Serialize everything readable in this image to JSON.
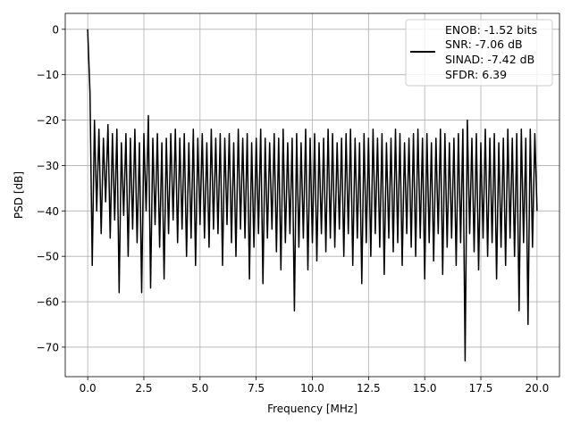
{
  "chart_data": {
    "type": "line",
    "title": "",
    "xlabel": "Frequency [MHz]",
    "ylabel": "PSD [dB]",
    "xlim": [
      -1.0,
      21.0
    ],
    "ylim": [
      -76.5,
      3.5
    ],
    "grid": true,
    "x_ticks": [
      0.0,
      2.5,
      5.0,
      7.5,
      10.0,
      12.5,
      15.0,
      17.5,
      20.0
    ],
    "x_tick_labels": [
      "0.0",
      "2.5",
      "5.0",
      "7.5",
      "10.0",
      "12.5",
      "15.0",
      "17.5",
      "20.0"
    ],
    "y_ticks": [
      0,
      -10,
      -20,
      -30,
      -40,
      -50,
      -60,
      -70
    ],
    "y_tick_labels": [
      "0",
      "−10",
      "−20",
      "−30",
      "−40",
      "−50",
      "−60",
      "−70"
    ],
    "legend_position": "top-right",
    "legend": [
      "ENOB: -1.52 bits",
      "SNR: -7.06 dB",
      "SINAD: -7.42 dB",
      "SFDR: 6.39"
    ],
    "series": [
      {
        "name": "PSD",
        "color": "#000000",
        "x_start": 0.0,
        "x_step": 0.1,
        "values": [
          0,
          -14,
          -52,
          -20,
          -40,
          -22,
          -45,
          -24,
          -38,
          -21,
          -46,
          -23,
          -42,
          -22,
          -58,
          -25,
          -41,
          -23,
          -50,
          -24,
          -44,
          -22,
          -47,
          -25,
          -58,
          -23,
          -40,
          -19,
          -57,
          -24,
          -43,
          -23,
          -48,
          -25,
          -55,
          -24,
          -45,
          -23,
          -42,
          -22,
          -47,
          -24,
          -44,
          -23,
          -50,
          -25,
          -46,
          -22,
          -52,
          -24,
          -43,
          -23,
          -46,
          -25,
          -48,
          -22,
          -44,
          -24,
          -45,
          -23,
          -52,
          -24,
          -43,
          -23,
          -47,
          -25,
          -50,
          -22,
          -44,
          -24,
          -46,
          -23,
          -55,
          -25,
          -48,
          -24,
          -45,
          -22,
          -56,
          -24,
          -46,
          -25,
          -44,
          -23,
          -49,
          -24,
          -53,
          -22,
          -47,
          -25,
          -45,
          -24,
          -62,
          -23,
          -48,
          -25,
          -46,
          -22,
          -53,
          -24,
          -47,
          -23,
          -51,
          -25,
          -45,
          -24,
          -49,
          -22,
          -46,
          -23,
          -48,
          -25,
          -44,
          -24,
          -50,
          -23,
          -45,
          -22,
          -52,
          -24,
          -46,
          -25,
          -56,
          -23,
          -47,
          -24,
          -50,
          -22,
          -45,
          -24,
          -48,
          -23,
          -54,
          -25,
          -46,
          -24,
          -49,
          -22,
          -47,
          -23,
          -52,
          -25,
          -45,
          -24,
          -48,
          -23,
          -50,
          -22,
          -46,
          -24,
          -55,
          -23,
          -47,
          -25,
          -51,
          -24,
          -45,
          -22,
          -54,
          -23,
          -48,
          -25,
          -46,
          -24,
          -52,
          -23,
          -47,
          -22,
          -73,
          -20,
          -45,
          -24,
          -49,
          -23,
          -53,
          -25,
          -46,
          -22,
          -50,
          -24,
          -47,
          -23,
          -55,
          -25,
          -48,
          -24,
          -52,
          -22,
          -46,
          -24,
          -50,
          -23,
          -62,
          -22,
          -47,
          -24,
          -65,
          -22,
          -48,
          -23,
          -40
        ]
      }
    ]
  }
}
